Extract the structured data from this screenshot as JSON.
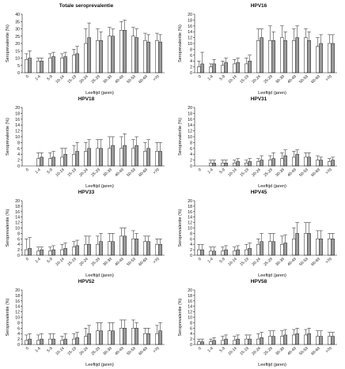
{
  "chart_data": [
    {
      "type": "bar",
      "title": "Totale seroprevalentie",
      "xlabel": "Leeftijd (jaren)",
      "ylabel": "Seroprevalentie (%)",
      "ylim": [
        0,
        40
      ],
      "yticks": [
        0,
        5,
        10,
        15,
        20,
        25,
        30,
        35,
        40
      ],
      "categories": [
        "0",
        "1-4",
        "5-9",
        "10-14",
        "15-19",
        "20-24",
        "25-29",
        "30-39",
        "40-49",
        "50-59",
        "60-69",
        ">70"
      ],
      "series": [
        {
          "values": [
            9,
            8,
            10,
            10,
            12,
            20,
            22,
            25,
            29,
            25,
            22,
            22
          ],
          "error_upper": [
            4,
            2,
            3,
            3,
            4,
            10,
            8,
            6,
            6,
            6,
            5,
            5
          ]
        },
        {
          "values": [
            10,
            8,
            11,
            11,
            13,
            24,
            22,
            25,
            29,
            24,
            21,
            21
          ],
          "error_upper": [
            5,
            2,
            3,
            3,
            5,
            10,
            6,
            5,
            7,
            6,
            5,
            5
          ]
        }
      ]
    },
    {
      "type": "bar",
      "title": "HPV16",
      "xlabel": "Leeftijd (jaren)",
      "ylabel": "Seroprevalentie (%)",
      "ylim": [
        0,
        20
      ],
      "yticks": [
        0,
        2,
        4,
        6,
        8,
        10,
        12,
        14,
        16,
        18,
        20
      ],
      "categories": [
        "0",
        "1-4",
        "5-9",
        "10-14",
        "15-19",
        "20-24",
        "25-29",
        "30-39",
        "40-49",
        "50-59",
        "60-69",
        ">70"
      ],
      "series": [
        {
          "values": [
            2,
            2,
            2.5,
            3,
            3,
            11,
            11,
            12,
            11,
            12,
            9,
            10
          ],
          "error_upper": [
            2,
            1,
            1.5,
            1.5,
            2,
            4,
            5,
            4,
            4,
            3,
            3,
            3
          ]
        },
        {
          "values": [
            3,
            3,
            3.5,
            3.5,
            4,
            12,
            11,
            11,
            12,
            11,
            10,
            10
          ],
          "error_upper": [
            4,
            1.5,
            1.5,
            1.5,
            2,
            3,
            3,
            3,
            4,
            3,
            3,
            3
          ]
        }
      ]
    },
    {
      "type": "bar",
      "title": "HPV18",
      "xlabel": "Leeftijd (jaren)",
      "ylabel": "Seroprevalentie (%)",
      "ylim": [
        0,
        20
      ],
      "yticks": [
        0,
        2,
        4,
        6,
        8,
        10,
        12,
        14,
        16,
        18,
        20
      ],
      "categories": [
        "0",
        "1-4",
        "5-9",
        "10-14",
        "15-19",
        "20-24",
        "25-29",
        "30-39",
        "40-49",
        "50-59",
        "60-69",
        ">70"
      ],
      "series": [
        {
          "values": [
            0,
            2.5,
            2.5,
            3,
            4,
            5,
            6,
            6,
            6,
            6,
            5,
            5
          ],
          "error_upper": [
            0,
            2,
            2,
            3,
            3,
            3,
            3,
            4,
            4,
            3,
            3,
            3
          ]
        },
        {
          "values": [
            0,
            3,
            3,
            4,
            5,
            6,
            6,
            7,
            7,
            7,
            6,
            5
          ],
          "error_upper": [
            0,
            1.5,
            2,
            2,
            3,
            3,
            3,
            3,
            4,
            3,
            3,
            3
          ]
        }
      ]
    },
    {
      "type": "bar",
      "title": "HPV31",
      "xlabel": "Leeftijd (jaren)",
      "ylabel": "Seroprevalentie (%)",
      "ylim": [
        0,
        20
      ],
      "yticks": [
        0,
        2,
        4,
        6,
        8,
        10,
        12,
        14,
        16,
        18,
        20
      ],
      "categories": [
        "0",
        "1-4",
        "5-9",
        "10-14",
        "15-19",
        "20-24",
        "25-29",
        "30-39",
        "40-49",
        "50-59",
        "60-69",
        ">70"
      ],
      "series": [
        {
          "values": [
            0,
            1,
            1,
            1,
            1,
            1.5,
            2,
            2.5,
            3,
            3,
            2,
            1.5
          ],
          "error_upper": [
            0,
            1,
            1,
            1,
            1,
            1,
            1.5,
            2,
            2,
            1.5,
            1.5,
            1
          ]
        },
        {
          "values": [
            0,
            1,
            1,
            1.5,
            1.5,
            2,
            2.5,
            3.5,
            4,
            3,
            2,
            2
          ],
          "error_upper": [
            0,
            1,
            1,
            1,
            1,
            1.5,
            2,
            2,
            1.5,
            1.5,
            1,
            1
          ]
        }
      ]
    },
    {
      "type": "bar",
      "title": "HPV33",
      "xlabel": "Leeftijd (jaren)",
      "ylabel": "Seroprevalentie (%)",
      "ylim": [
        0,
        20
      ],
      "yticks": [
        0,
        2,
        4,
        6,
        8,
        10,
        12,
        14,
        16,
        18,
        20
      ],
      "categories": [
        "0",
        "1-4",
        "5-9",
        "10-14",
        "15-19",
        "20-24",
        "25-29",
        "30-39",
        "40-49",
        "50-59",
        "60-69",
        ">70"
      ],
      "series": [
        {
          "values": [
            2,
            1.5,
            1.5,
            2,
            3,
            4,
            4,
            5,
            7,
            6,
            5,
            4
          ],
          "error_upper": [
            4,
            1.5,
            1.5,
            2,
            2,
            3,
            3,
            3,
            3,
            3,
            2,
            2
          ]
        },
        {
          "values": [
            2.5,
            2,
            2,
            2.5,
            3.5,
            4,
            5,
            5,
            7,
            6,
            5,
            4
          ],
          "error_upper": [
            4,
            1,
            1.5,
            2,
            2,
            3,
            3,
            3,
            3,
            2,
            2,
            2
          ]
        }
      ]
    },
    {
      "type": "bar",
      "title": "HPV45",
      "xlabel": "Leeftijd (jaren)",
      "ylabel": "Seroprevalentie (%)",
      "ylim": [
        0,
        20
      ],
      "yticks": [
        0,
        2,
        4,
        6,
        8,
        10,
        12,
        14,
        16,
        18,
        20
      ],
      "categories": [
        "0",
        "1-4",
        "5-9",
        "10-14",
        "15-19",
        "20-24",
        "25-29",
        "30-39",
        "40-49",
        "50-59",
        "60-69",
        ">70"
      ],
      "series": [
        {
          "values": [
            2,
            1.5,
            1.5,
            1.5,
            2,
            4,
            5,
            4,
            6,
            8,
            6,
            6
          ],
          "error_upper": [
            2,
            1.5,
            1.5,
            1.5,
            2,
            2,
            3,
            3,
            4,
            4,
            3,
            2
          ]
        },
        {
          "values": [
            2,
            1.5,
            2,
            2,
            2.5,
            5,
            5,
            4.5,
            8,
            8,
            6,
            6
          ],
          "error_upper": [
            2,
            1.5,
            1.5,
            1.5,
            2,
            3,
            3,
            3,
            4,
            4,
            3,
            2
          ]
        }
      ]
    },
    {
      "type": "bar",
      "title": "HPV52",
      "xlabel": "Leeftijd (jaren)",
      "ylabel": "Seroprevalentie (%)",
      "ylim": [
        0,
        20
      ],
      "yticks": [
        0,
        2,
        4,
        6,
        8,
        10,
        12,
        14,
        16,
        18,
        20
      ],
      "categories": [
        "0",
        "1-4",
        "5-9",
        "10-14",
        "15-19",
        "20-24",
        "25-29",
        "30-39",
        "40-49",
        "50-59",
        "60-69",
        ">70"
      ],
      "series": [
        {
          "values": [
            1.5,
            1.5,
            2,
            1.5,
            2,
            3,
            5,
            5,
            6,
            6,
            4,
            4
          ],
          "error_upper": [
            2,
            2,
            2,
            1.5,
            2,
            3,
            3,
            3,
            3,
            3,
            2,
            3
          ]
        },
        {
          "values": [
            2,
            2,
            2,
            2,
            2.5,
            4,
            5,
            5,
            6,
            6,
            4,
            5
          ],
          "error_upper": [
            2,
            2,
            2,
            2,
            2,
            3,
            3,
            3,
            3,
            2,
            2,
            3
          ]
        }
      ]
    },
    {
      "type": "bar",
      "title": "HPV58",
      "xlabel": "Leeftijd (jaren)",
      "ylabel": "Seroprevalentie (%)",
      "ylim": [
        0,
        20
      ],
      "yticks": [
        0,
        2,
        4,
        6,
        8,
        10,
        12,
        14,
        16,
        18,
        20
      ],
      "categories": [
        "0",
        "1-4",
        "5-9",
        "10-14",
        "15-19",
        "20-24",
        "25-29",
        "30-39",
        "40-49",
        "50-59",
        "60-69",
        ">70"
      ],
      "series": [
        {
          "values": [
            1,
            1,
            1.5,
            1.5,
            2,
            2,
            3,
            3,
            3.5,
            3.5,
            3,
            3
          ],
          "error_upper": [
            1,
            1,
            1.5,
            1.5,
            1.5,
            2,
            2,
            2,
            2,
            2,
            2,
            1.5
          ]
        },
        {
          "values": [
            1,
            1.5,
            2,
            2,
            2,
            2.5,
            3,
            3.5,
            4,
            4,
            3,
            3
          ],
          "error_upper": [
            1,
            1,
            1.5,
            1.5,
            1.5,
            2,
            2,
            2,
            2,
            2,
            2,
            1.5
          ]
        }
      ]
    }
  ],
  "style": {
    "series_fill": [
      "#ffffff",
      "#9a9a9a"
    ],
    "stroke": "#222222"
  }
}
